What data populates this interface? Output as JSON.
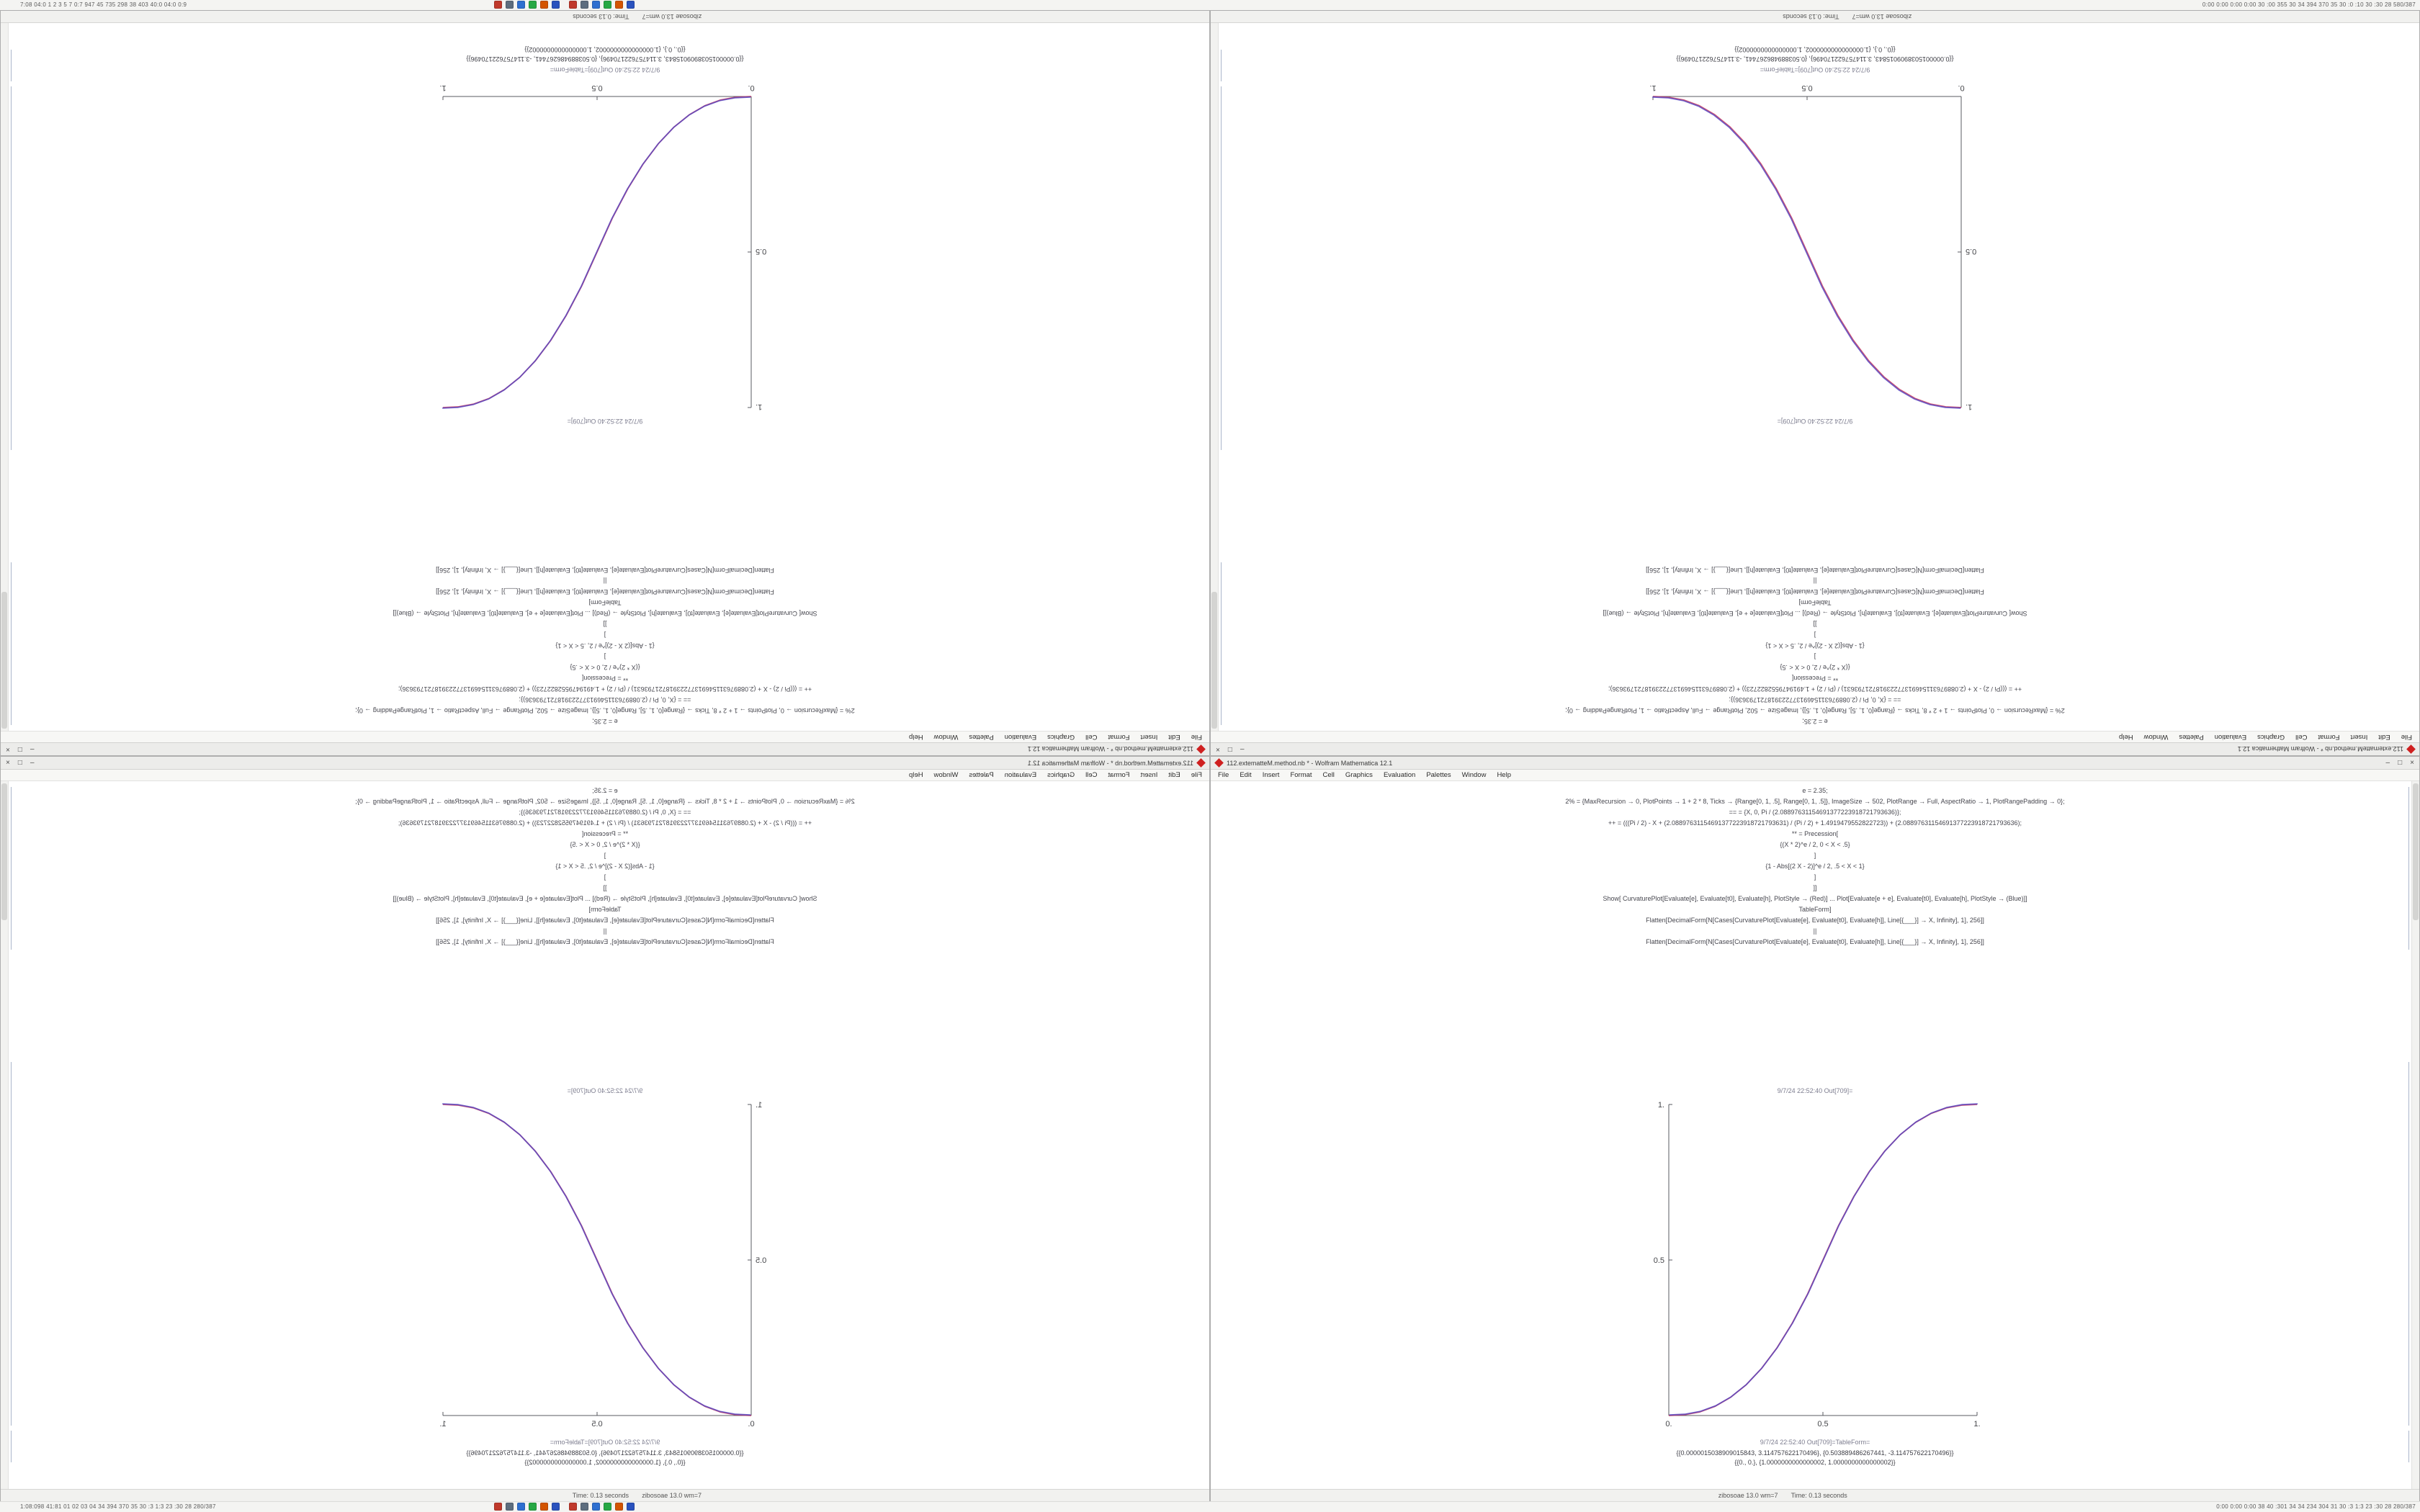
{
  "bars": {
    "top_left_text": "7:08 04:0 1 2 3 5 7 0:7 947 45 735 298 38 403 40:0 04:0 0:9",
    "top_right_text": "0:00 0:00 0:00 0:00 30 :00 355 30 34 394 370 35 30 :0 :10 30 :30 28 580/387",
    "bottom_left_text": "1:08:098 41:81 01 02 03 04 34 394 370 35 30 :3 1:3 23 :30 28 280/387",
    "bottom_right_text": "0:00 0:00 0:00 38 40 :301 34 34 234 304 31 30 :3 1:3 23 :30 28 280/387",
    "app_icons": [
      {
        "name": "app-red",
        "color": "#c0392b"
      },
      {
        "name": "app-slate",
        "color": "#5d6d7e"
      },
      {
        "name": "app-blue",
        "color": "#2e6fd0"
      },
      {
        "name": "app-green",
        "color": "#27a844"
      },
      {
        "name": "app-orange",
        "color": "#d35400"
      },
      {
        "name": "app-navy",
        "color": "#2a52be"
      }
    ]
  },
  "notebook": {
    "title": "112.extematteM.method.nb * - Wolfram Mathematica 12.1",
    "window_buttons": {
      "minimize": "–",
      "maximize": "□",
      "close": "×"
    },
    "menu": [
      "File",
      "Edit",
      "Insert",
      "Format",
      "Cell",
      "Graphics",
      "Evaluation",
      "Palettes",
      "Window",
      "Help"
    ],
    "code_lines": [
      "e = 2.35;",
      "2% = {MaxRecursion → 0, PlotPoints → 1 + 2 * 8, Ticks → {Range[0, 1, .5], Range[0, 1, .5]}, ImageSize → 502, PlotRange → Full, AspectRatio → 1, PlotRangePadding → 0};",
      "== = {X, 0, Pi / (2.08897631154691377223918721793636)};",
      "++ = (((Pi / 2) - X + (2.08897631154691377223918721793631) / (Pi / 2) + 1.4919479552822723)) + (2.08897631154691377223918721793636);",
      "** = Precession[",
      "{(X * 2)^e / 2, 0 < X < .5}",
      "]",
      "{1 - Abs[(2 X - 2)]^e / 2, .5 < X < 1}",
      "]",
      "]]",
      "Show[   CurvaturePlot[Evaluate[e], Evaluate[t0], Evaluate[h], PlotStyle → (Red)]   ...   Plot[Evaluate[e + e], Evaluate[t0], Evaluate[h], PlotStyle → (Blue)]]",
      "TableForm]",
      "Flatten[DecimalForm[N[Cases[CurvaturePlot[Evaluate[e], Evaluate[t0], Evaluate[h]], Line[{___}] → X, Infinity], 1], 256]]",
      "||",
      "Flatten[DecimalForm[N[Cases[CurvaturePlot[Evaluate[e], Evaluate[t0], Evaluate[h]], Line[{___}] → X, Infinity], 1], 256]]"
    ],
    "out_caption": "9/7/24 22:52:40 Out[709]=",
    "out_caption_tableform": "9/7/24 22:52:40 Out[709]=TableForm=",
    "outputs": [
      "{{0.0000015038909015843, 3.114757622170496}, {0.503889486267441, -3.114757622170496}}",
      "{{0., 0.}, {1.0000000000000002, 1.0000000000000002}}"
    ],
    "status": {
      "left": "zibosoae 13.0 wm=7",
      "right": "Time: 0.13 seconds"
    }
  },
  "windows": [
    {
      "id": "top-left",
      "orientation": "rotate-180",
      "plot": "sigmoid-increasing"
    },
    {
      "id": "top-right",
      "orientation": "rotate-180",
      "plot": "sigmoid-decreasing"
    },
    {
      "id": "bottom-left",
      "orientation": "mirror-x",
      "plot": "sigmoid-increasing"
    },
    {
      "id": "bottom-right",
      "orientation": "normal",
      "plot": "sigmoid-increasing"
    }
  ],
  "chart_data": [
    {
      "id": "sigmoid-increasing",
      "type": "line",
      "title": "",
      "xlabel": "",
      "ylabel": "",
      "x": [
        0,
        0.05,
        0.1,
        0.15,
        0.2,
        0.25,
        0.3,
        0.35,
        0.4,
        0.45,
        0.5,
        0.55,
        0.6,
        0.65,
        0.7,
        0.75,
        0.8,
        0.85,
        0.9,
        0.95,
        1
      ],
      "series": [
        {
          "name": "CurvaturePlot Evaluate[e] (Red)",
          "values": [
            0,
            0.0022,
            0.0114,
            0.0295,
            0.058,
            0.098,
            0.1505,
            0.2163,
            0.296,
            0.3903,
            0.5,
            0.6097,
            0.704,
            0.7837,
            0.8495,
            0.902,
            0.942,
            0.9705,
            0.9886,
            0.9978,
            1
          ]
        },
        {
          "name": "Plot Evaluate[e+e] (Blue)",
          "values": [
            0,
            0.0022,
            0.0114,
            0.0295,
            0.058,
            0.098,
            0.1505,
            0.2163,
            0.296,
            0.3903,
            0.5,
            0.6097,
            0.704,
            0.7837,
            0.8495,
            0.902,
            0.942,
            0.9705,
            0.9886,
            0.9978,
            1
          ]
        }
      ],
      "colors": [
        "#c8385a",
        "#5a48c0"
      ],
      "xlim": [
        0,
        1
      ],
      "ylim": [
        0,
        1
      ],
      "xtick_vals": [
        0,
        0.5,
        1
      ],
      "xticks": [
        "0.",
        "0.5",
        "1."
      ],
      "ytick_vals": [
        0.5,
        1
      ],
      "yticks": [
        "0.5",
        "1."
      ],
      "grid": false,
      "legend": "none"
    },
    {
      "id": "sigmoid-decreasing",
      "type": "line",
      "title": "",
      "xlabel": "",
      "ylabel": "",
      "x": [
        0,
        0.05,
        0.1,
        0.15,
        0.2,
        0.25,
        0.3,
        0.35,
        0.4,
        0.45,
        0.5,
        0.55,
        0.6,
        0.65,
        0.7,
        0.75,
        0.8,
        0.85,
        0.9,
        0.95,
        1
      ],
      "series": [
        {
          "name": "CurvaturePlot Evaluate[e] (Red)",
          "values": [
            1,
            0.9978,
            0.9886,
            0.9705,
            0.942,
            0.902,
            0.8495,
            0.7837,
            0.704,
            0.6097,
            0.5,
            0.3903,
            0.296,
            0.2163,
            0.1505,
            0.098,
            0.058,
            0.0295,
            0.0114,
            0.0022,
            0
          ]
        },
        {
          "name": "Plot Evaluate[e+e] (Blue)",
          "values": [
            1,
            0.9978,
            0.9886,
            0.9705,
            0.942,
            0.902,
            0.8495,
            0.7837,
            0.704,
            0.6097,
            0.5,
            0.3903,
            0.296,
            0.2163,
            0.1505,
            0.098,
            0.058,
            0.0295,
            0.0114,
            0.0022,
            0
          ]
        }
      ],
      "colors": [
        "#c8385a",
        "#5a48c0"
      ],
      "xlim": [
        0,
        1
      ],
      "ylim": [
        0,
        1
      ],
      "xtick_vals": [
        0,
        0.5,
        1
      ],
      "xticks": [
        "0.",
        "0.5",
        "1."
      ],
      "ytick_vals": [
        0.5,
        1
      ],
      "yticks": [
        "0.5",
        "1."
      ],
      "grid": false,
      "legend": "none"
    }
  ]
}
